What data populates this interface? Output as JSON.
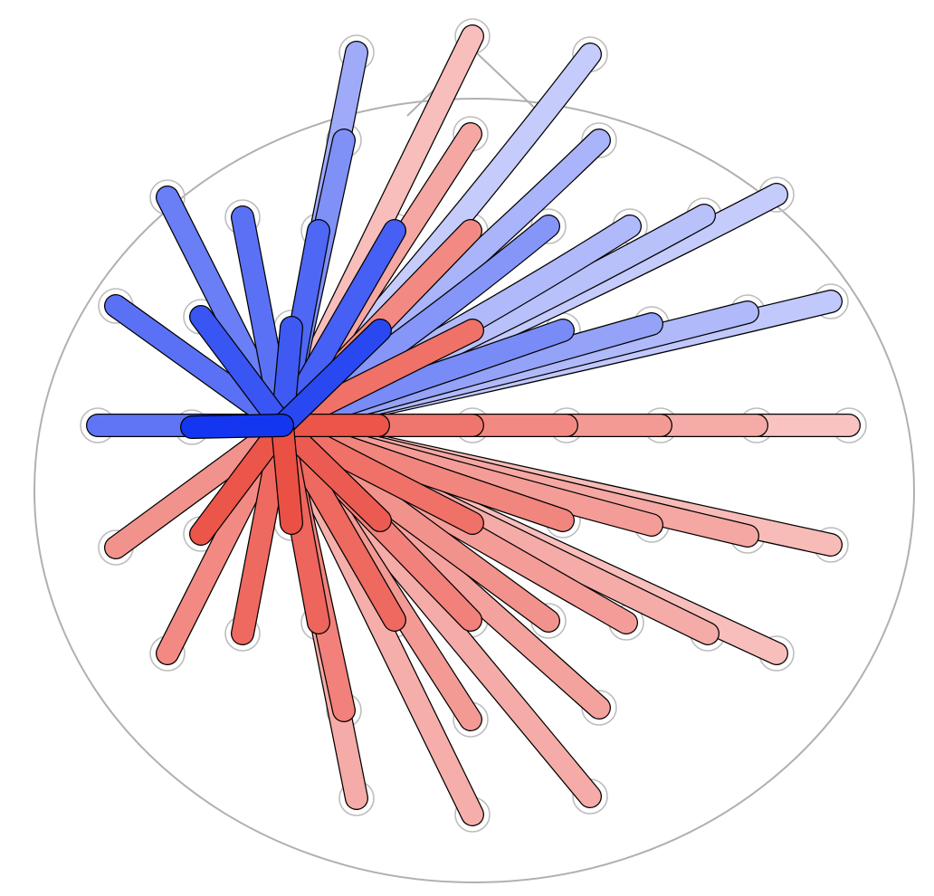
{
  "diagram": {
    "type": "sensor-connectivity-plot",
    "head_outline": "circle",
    "nose": true,
    "hub_sensor": "sensor-10",
    "colors": {
      "outline": "#b0b0b0",
      "sensor_ring": "#bdbdbd",
      "curve_stroke": "#000000",
      "red_scale_strong": "#e8372a",
      "red_scale_weak": "#fbdcdc",
      "blue_scale_strong": "#0a2df0",
      "blue_scale_weak": "#dfe1fd"
    },
    "connections": [
      {
        "to": "sensor-00",
        "weight": 0.45
      },
      {
        "to": "sensor-01",
        "weight": -0.1
      },
      {
        "to": "sensor-02",
        "weight": 0.28
      },
      {
        "to": "sensor-03",
        "weight": 0.38
      },
      {
        "to": "sensor-04",
        "weight": -0.22
      },
      {
        "to": "sensor-05",
        "weight": 0.4
      },
      {
        "to": "sensor-06",
        "weight": 0.2
      },
      {
        "to": "sensor-07",
        "weight": 0.55
      },
      {
        "to": "sensor-08",
        "weight": 0.65
      },
      {
        "to": "sensor-09",
        "weight": 0.78
      },
      {
        "to": "sensor-11",
        "weight": 0.32
      },
      {
        "to": "sensor-12",
        "weight": 0.52
      },
      {
        "to": "sensor-13",
        "weight": 0.68
      },
      {
        "to": "sensor-14",
        "weight": 0.75
      },
      {
        "to": "sensor-15",
        "weight": 0.38
      },
      {
        "to": "sensor-16",
        "weight": 0.62
      },
      {
        "to": "sensor-17",
        "weight": 0.85
      },
      {
        "to": "sensor-18",
        "weight": 0.88
      },
      {
        "to": "sensor-19",
        "weight": 0.72
      },
      {
        "to": "sensor-20",
        "weight": 0.56
      },
      {
        "to": "sensor-21",
        "weight": 0.42
      },
      {
        "to": "sensor-22",
        "weight": 0.28
      },
      {
        "to": "sensor-23",
        "weight": 0.5
      },
      {
        "to": "sensor-24",
        "weight": 0.8
      },
      {
        "to": "sensor-25",
        "weight": 0.95
      },
      {
        "to": "sensor-26",
        "weight": 0.82
      },
      {
        "to": "sensor-27",
        "weight": 0.6
      },
      {
        "to": "sensor-28",
        "weight": 0.4
      },
      {
        "to": "sensor-29",
        "weight": 0.25
      },
      {
        "to": "sensor-30",
        "weight": -0.55
      },
      {
        "to": "sensor-31",
        "weight": -0.72
      },
      {
        "to": "sensor-32",
        "weight": -0.82
      },
      {
        "to": "sensor-33",
        "weight": -0.68
      },
      {
        "to": "sensor-34",
        "weight": 0.6
      },
      {
        "to": "sensor-35",
        "weight": -0.45
      },
      {
        "to": "sensor-36",
        "weight": -0.35
      },
      {
        "to": "sensor-37",
        "weight": -0.28
      },
      {
        "to": "sensor-38",
        "weight": -0.18
      },
      {
        "to": "sensor-39",
        "weight": -0.62
      },
      {
        "to": "sensor-40",
        "weight": -0.95
      },
      {
        "to": "sensor-41",
        "weight": 0.88
      },
      {
        "to": "sensor-42",
        "weight": 0.7
      },
      {
        "to": "sensor-43",
        "weight": 0.55
      },
      {
        "to": "sensor-44",
        "weight": 0.48
      },
      {
        "to": "sensor-45",
        "weight": 0.36
      },
      {
        "to": "sensor-46",
        "weight": 0.22
      },
      {
        "to": "sensor-47",
        "weight": -0.65
      },
      {
        "to": "sensor-48",
        "weight": 0.78
      },
      {
        "to": "sensor-49",
        "weight": 0.52
      },
      {
        "to": "sensor-50",
        "weight": 0.38
      },
      {
        "to": "sensor-51",
        "weight": 0.25
      },
      {
        "to": "sensor-52",
        "weight": 0.62
      },
      {
        "to": "sensor-53",
        "weight": 0.45
      },
      {
        "to": "sensor-54",
        "weight": 0.35
      },
      {
        "to": "sensor-55",
        "weight": -0.8
      },
      {
        "to": "sensor-56",
        "weight": -0.62
      },
      {
        "to": "sensor-57",
        "weight": -0.3
      },
      {
        "to": "sensor-58",
        "weight": -0.5
      },
      {
        "to": "sensor-59",
        "weight": -0.2
      },
      {
        "to": "sensor-60",
        "weight": -0.38
      },
      {
        "to": "sensor-61",
        "weight": -0.45
      },
      {
        "to": "sensor-62",
        "weight": -0.15
      },
      {
        "to": "sensor-63",
        "weight": -0.25
      },
      {
        "to": "sensor-64",
        "weight": -0.62
      },
      {
        "to": "sensor-65",
        "weight": -0.52
      },
      {
        "to": "sensor-66",
        "weight": -0.75
      },
      {
        "to": "sensor-67",
        "weight": -0.7
      },
      {
        "to": "sensor-68",
        "weight": -0.55
      }
    ]
  }
}
